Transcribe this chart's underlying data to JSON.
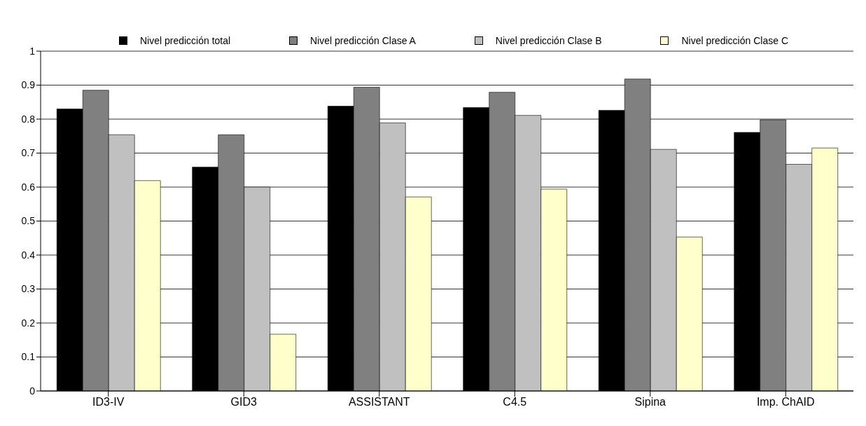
{
  "chart_data": {
    "type": "bar",
    "categories": [
      "ID3-IV",
      "GID3",
      "ASSISTANT",
      "C4.5",
      "Sipina",
      "Imp. ChAID"
    ],
    "series": [
      {
        "name": "Nivel predicción total",
        "color": "#000000",
        "values": [
          0.83,
          0.659,
          0.838,
          0.834,
          0.826,
          0.761
        ]
      },
      {
        "name": "Nivel predicción Clase A",
        "color": "#808080",
        "values": [
          0.885,
          0.754,
          0.894,
          0.879,
          0.918,
          0.798
        ]
      },
      {
        "name": "Nivel predicción Clase B",
        "color": "#c0c0c0",
        "values": [
          0.754,
          0.6,
          0.789,
          0.811,
          0.711,
          0.667
        ]
      },
      {
        "name": "Nivel predicción Clase C",
        "color": "#ffffcc",
        "values": [
          0.619,
          0.167,
          0.571,
          0.594,
          0.453,
          0.715
        ]
      }
    ],
    "ylim": [
      0,
      1
    ],
    "yticks": [
      0,
      0.1,
      0.2,
      0.3,
      0.4,
      0.5,
      0.6,
      0.7,
      0.8,
      0.9,
      1
    ],
    "grid": "y",
    "legend": "top"
  }
}
